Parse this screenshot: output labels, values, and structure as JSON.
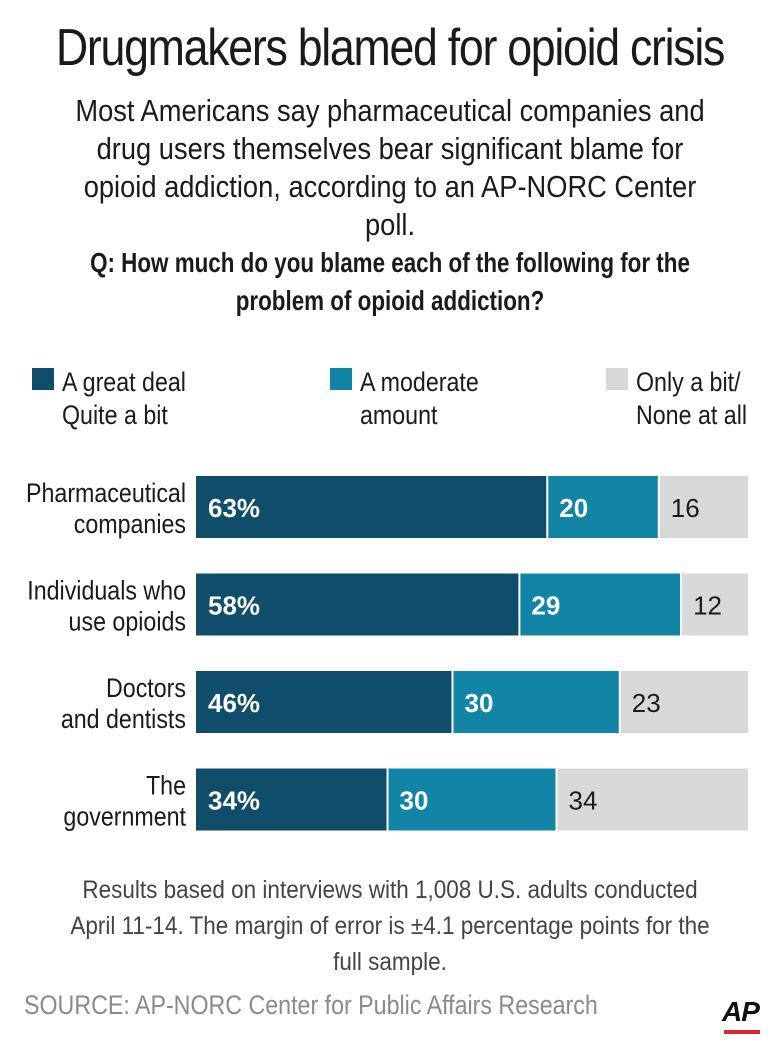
{
  "header": {
    "title": "Drugmakers blamed for opioid crisis",
    "subtitle": "Most Americans say pharmaceutical companies and drug users themselves bear significant blame for opioid addiction,  according to an AP-NORC Center poll.",
    "question": "Q: How much do you blame each of the following for the problem of opioid addiction?"
  },
  "colors": {
    "great_deal": "#0f4d6b",
    "moderate": "#1284a6",
    "bit_none": "#d7d8d9",
    "divider": "#ffffff"
  },
  "chart_data": {
    "type": "bar",
    "orientation": "horizontal",
    "stacked": true,
    "categories": [
      "Pharmaceutical companies",
      "Individuals who use opioids",
      "Doctors and dentists",
      "The government"
    ],
    "category_lines": [
      [
        "Pharmaceutical",
        "companies"
      ],
      [
        "Individuals who",
        "use opioids"
      ],
      [
        "Doctors",
        "and dentists"
      ],
      [
        "The",
        "government"
      ]
    ],
    "series": [
      {
        "name": "A great deal\nQuite a bit",
        "values": [
          63,
          58,
          46,
          34
        ],
        "labels": [
          "63%",
          "58%",
          "46%",
          "34%"
        ]
      },
      {
        "name": "A moderate\namount",
        "values": [
          20,
          29,
          30,
          30
        ],
        "labels": [
          "20",
          "29",
          "30",
          "30"
        ]
      },
      {
        "name": "Only a bit/\nNone at all",
        "values": [
          16,
          12,
          23,
          34
        ],
        "labels": [
          "16",
          "12",
          "23",
          "34"
        ]
      }
    ],
    "xlim": [
      0,
      100
    ],
    "legend_position": "top",
    "grid": false
  },
  "footer": {
    "note": "Results based on interviews with 1,008 U.S. adults conducted April 11-14. The margin of error is ±4.1 percentage points for the full sample.",
    "source": "SOURCE: AP-NORC Center for Public Affairs Research",
    "logo": "AP"
  }
}
